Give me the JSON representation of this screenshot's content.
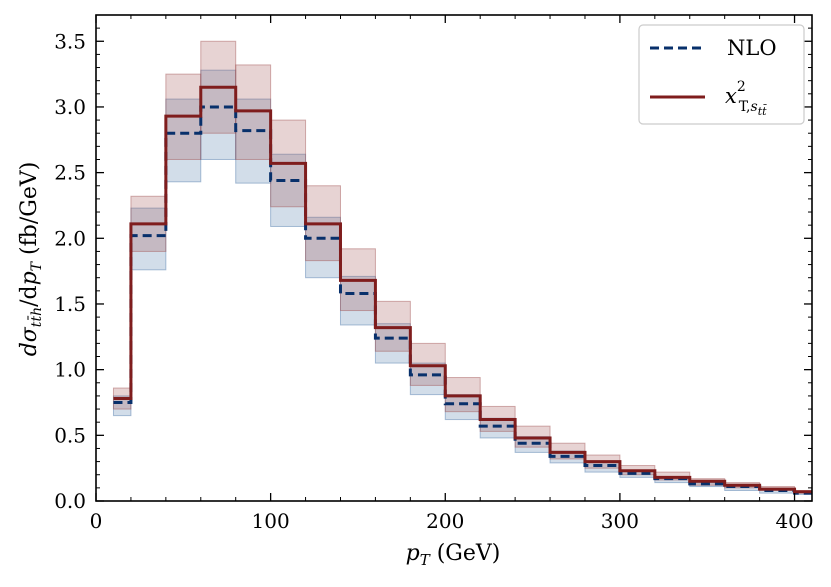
{
  "chart_data": {
    "type": "line",
    "step": true,
    "xlabel": "p_T (GeV)",
    "ylabel": "dσ_{tt̄h}/dp_T (fb/GeV)",
    "xlim": [
      0,
      410
    ],
    "ylim": [
      0,
      3.7
    ],
    "xticks": [
      0,
      100,
      200,
      300,
      400
    ],
    "yticks": [
      0.0,
      0.5,
      1.0,
      1.5,
      2.0,
      2.5,
      3.0,
      3.5
    ],
    "xtick_labels": [
      "0",
      "100",
      "200",
      "300",
      "400"
    ],
    "ytick_labels": [
      "0.0",
      "0.5",
      "1.0",
      "1.5",
      "2.0",
      "2.5",
      "3.0",
      "3.5"
    ],
    "bin_edges": [
      10,
      20,
      40,
      60,
      80,
      100,
      120,
      140,
      160,
      180,
      200,
      220,
      240,
      260,
      280,
      300,
      320,
      340,
      360,
      380,
      400,
      420
    ],
    "legend": {
      "placement": "top-right"
    },
    "series": [
      {
        "name": "NLO",
        "color": "#08306b",
        "linestyle": "dashed",
        "band_color": "#4a76a8",
        "values": [
          0.75,
          2.02,
          2.8,
          3.0,
          2.82,
          2.44,
          2.0,
          1.58,
          1.24,
          0.96,
          0.74,
          0.57,
          0.44,
          0.34,
          0.27,
          0.21,
          0.17,
          0.13,
          0.11,
          0.08,
          0.06
        ],
        "band_low": [
          0.65,
          1.76,
          2.43,
          2.6,
          2.42,
          2.09,
          1.7,
          1.34,
          1.05,
          0.81,
          0.62,
          0.48,
          0.37,
          0.29,
          0.22,
          0.18,
          0.14,
          0.11,
          0.08,
          0.06,
          0.05
        ],
        "band_high": [
          0.8,
          2.23,
          3.06,
          3.28,
          3.06,
          2.64,
          2.16,
          1.71,
          1.35,
          1.05,
          0.81,
          0.63,
          0.49,
          0.38,
          0.3,
          0.23,
          0.18,
          0.14,
          0.12,
          0.09,
          0.07
        ]
      },
      {
        "name": "x²_{T,s_{tt̄}}",
        "color": "#7f1d1d",
        "linestyle": "solid",
        "band_color": "#a05050",
        "values": [
          0.78,
          2.11,
          2.93,
          3.15,
          2.97,
          2.57,
          2.11,
          1.68,
          1.32,
          1.03,
          0.8,
          0.62,
          0.48,
          0.37,
          0.3,
          0.23,
          0.18,
          0.15,
          0.12,
          0.09,
          0.07
        ],
        "band_low": [
          0.7,
          1.9,
          2.6,
          2.8,
          2.6,
          2.24,
          1.83,
          1.45,
          1.14,
          0.88,
          0.68,
          0.53,
          0.41,
          0.32,
          0.25,
          0.2,
          0.16,
          0.12,
          0.1,
          0.08,
          0.06
        ],
        "band_high": [
          0.86,
          2.32,
          3.25,
          3.5,
          3.32,
          2.9,
          2.4,
          1.92,
          1.52,
          1.2,
          0.94,
          0.72,
          0.57,
          0.44,
          0.35,
          0.27,
          0.22,
          0.17,
          0.14,
          0.11,
          0.08
        ]
      }
    ]
  }
}
